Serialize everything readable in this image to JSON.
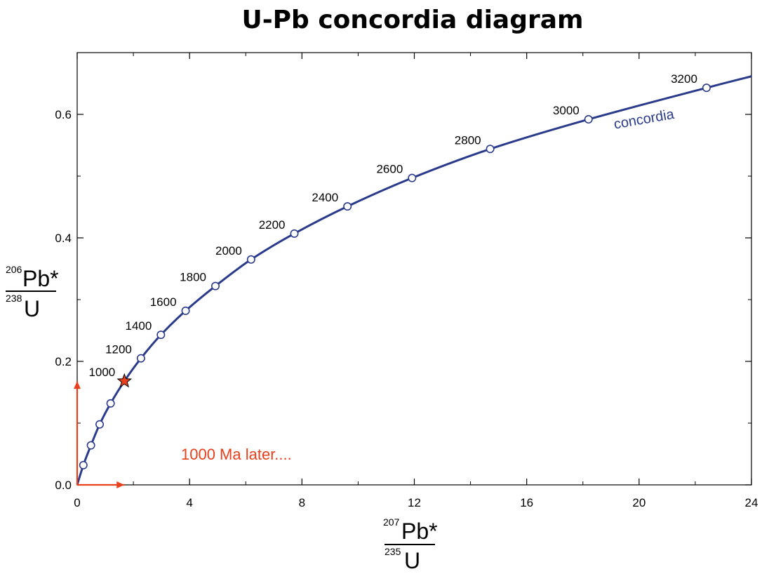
{
  "title": "U-Pb concordia diagram",
  "colors": {
    "curve": "#2b3b8c",
    "accent": "#e8401c",
    "axis": "#000000"
  },
  "chart_data": {
    "type": "line",
    "title": "U-Pb concordia diagram",
    "xlim": [
      0,
      24
    ],
    "ylim": [
      0,
      0.7
    ],
    "x_ticks": [
      0,
      4,
      8,
      12,
      16,
      20,
      24
    ],
    "x_minor_ticks": [
      2,
      6,
      10,
      14,
      18,
      22
    ],
    "y_ticks": [
      0.0,
      0.2,
      0.4,
      0.6
    ],
    "y_tick_labels": [
      "0.0",
      "0.2",
      "0.4",
      "0.6"
    ],
    "y_minor_ticks": [
      0.1,
      0.3,
      0.5
    ],
    "xlabel": {
      "numerator_sup": "207",
      "numerator": "Pb*",
      "denominator_sup": "235",
      "denominator": "U"
    },
    "ylabel": {
      "numerator_sup": "206",
      "numerator": "Pb*",
      "denominator_sup": "238",
      "denominator": "U"
    },
    "series": [
      {
        "name": "concordia",
        "label": "concordia",
        "curve_end_x": 24
      }
    ],
    "age_markers": [
      {
        "age": 200,
        "x": 0.22,
        "y": 0.032,
        "label": ""
      },
      {
        "age": 400,
        "x": 0.49,
        "y": 0.064,
        "label": ""
      },
      {
        "age": 600,
        "x": 0.8,
        "y": 0.098,
        "label": ""
      },
      {
        "age": 800,
        "x": 1.19,
        "y": 0.132,
        "label": ""
      },
      {
        "age": 1000,
        "x": 1.68,
        "y": 0.168,
        "label": "1000",
        "marker": "star"
      },
      {
        "age": 1200,
        "x": 2.27,
        "y": 0.205,
        "label": "1200"
      },
      {
        "age": 1400,
        "x": 2.98,
        "y": 0.243,
        "label": "1400"
      },
      {
        "age": 1600,
        "x": 3.86,
        "y": 0.282,
        "label": "1600"
      },
      {
        "age": 1800,
        "x": 4.92,
        "y": 0.322,
        "label": "1800"
      },
      {
        "age": 2000,
        "x": 6.19,
        "y": 0.365,
        "label": "2000"
      },
      {
        "age": 2200,
        "x": 7.73,
        "y": 0.407,
        "label": "2200"
      },
      {
        "age": 2400,
        "x": 9.62,
        "y": 0.451,
        "label": "2400"
      },
      {
        "age": 2600,
        "x": 11.92,
        "y": 0.497,
        "label": "2600"
      },
      {
        "age": 2800,
        "x": 14.7,
        "y": 0.544,
        "label": "2800"
      },
      {
        "age": 3000,
        "x": 18.2,
        "y": 0.592,
        "label": "3000"
      },
      {
        "age": 3200,
        "x": 22.4,
        "y": 0.643,
        "label": "3200"
      }
    ],
    "vectors": [
      {
        "name": "x-vector",
        "from": [
          0,
          0
        ],
        "to": [
          1.68,
          0
        ]
      },
      {
        "name": "y-vector",
        "from": [
          0,
          0
        ],
        "to": [
          0,
          0.168
        ]
      }
    ],
    "annotation": "1000 Ma later...."
  }
}
